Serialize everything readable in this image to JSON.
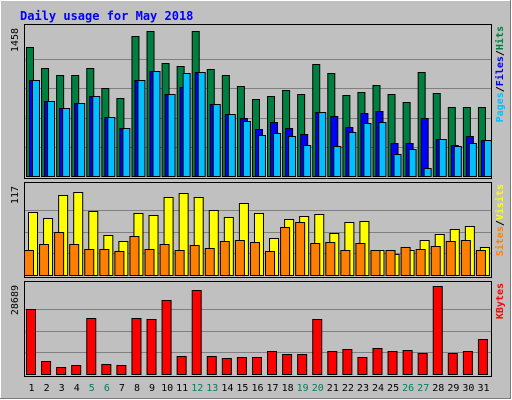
{
  "chart_data": {
    "type": "bar",
    "title": "Daily usage for May 2018",
    "categories": [
      "1",
      "2",
      "3",
      "4",
      "5",
      "6",
      "7",
      "8",
      "9",
      "10",
      "11",
      "12",
      "13",
      "14",
      "15",
      "16",
      "17",
      "18",
      "19",
      "20",
      "21",
      "22",
      "23",
      "24",
      "25",
      "26",
      "27",
      "28",
      "29",
      "30",
      "31"
    ],
    "weekend_days": [
      "5",
      "6",
      "12",
      "13",
      "19",
      "20",
      "26",
      "27"
    ],
    "panels": [
      {
        "name": "traffic",
        "ymax": 1458,
        "ymax_label": "1458",
        "axis_label": {
          "parts": [
            "Pages",
            "/",
            "Files",
            "/",
            "Hits"
          ]
        },
        "series": [
          {
            "name": "Hits",
            "color": "#008040",
            "values": [
              1290,
              1080,
              1010,
              1010,
              1080,
              880,
              780,
              1400,
              1450,
              1130,
              1100,
              1450,
              1070,
              1010,
              900,
              770,
              800,
              860,
              820,
              1120,
              1030,
              810,
              840,
              910,
              820,
              740,
              1040,
              830,
              690,
              690,
              690
            ]
          },
          {
            "name": "Files",
            "color": "#0000ff",
            "values": [
              960,
              750,
              680,
              730,
              800,
              590,
              480,
              960,
              1050,
              820,
              890,
              1040,
              720,
              620,
              580,
              470,
              540,
              480,
              420,
              640,
              600,
              490,
              630,
              650,
              330,
              330,
              580,
              370,
              310,
              400,
              360
            ]
          },
          {
            "name": "Pages",
            "color": "#00c0ff",
            "values": [
              960,
              750,
              680,
              730,
              800,
              590,
              480,
              960,
              1050,
              820,
              1030,
              1040,
              720,
              620,
              550,
              410,
              430,
              400,
              310,
              640,
              300,
              440,
              530,
              540,
              220,
              270,
              80,
              370,
              300,
              330,
              360
            ]
          }
        ]
      },
      {
        "name": "visits",
        "ymax": 117,
        "ymax_label": "117",
        "axis_label": {
          "parts": [
            "Sites",
            "/",
            "Visits"
          ]
        },
        "series": [
          {
            "name": "Visits",
            "color": "#ffff00",
            "values": [
              85,
              76,
              108,
              112,
              86,
              54,
              46,
              83,
              81,
              105,
              110,
              105,
              88,
              78,
              97,
              83,
              50,
              75,
              80,
              82,
              57,
              71,
              73,
              34,
              28,
              33,
              47,
              55,
              62,
              66,
              37
            ]
          },
          {
            "name": "Sites",
            "color": "#ff8000",
            "values": [
              33,
              42,
              58,
              42,
              35,
              35,
              32,
              53,
              35,
              42,
              34,
              41,
              36,
              46,
              47,
              44,
              32,
              65,
              71,
              43,
              44,
              34,
              43,
              34,
              33,
              37,
              35,
              39,
              46,
              47,
              34
            ]
          }
        ]
      },
      {
        "name": "kbytes",
        "ymax": 28689,
        "ymax_label": "28689",
        "axis_label": {
          "parts": [
            "KBytes"
          ]
        },
        "series": [
          {
            "name": "KBytes",
            "color": "#ff0000",
            "values": [
              21500,
              4200,
              2300,
              3000,
              18600,
              3200,
              2900,
              18600,
              18100,
              24300,
              5800,
              27800,
              6100,
              5200,
              5700,
              5700,
              7700,
              6500,
              6600,
              18100,
              7500,
              8400,
              5700,
              8600,
              7500,
              7900,
              6800,
              29100,
              6800,
              7700,
              11400
            ]
          }
        ]
      }
    ],
    "colors": {
      "background": "#c0c0c0",
      "title": "#0000ff",
      "day_label_weekday": "#000000",
      "day_label_weekend": "#00805c"
    }
  }
}
